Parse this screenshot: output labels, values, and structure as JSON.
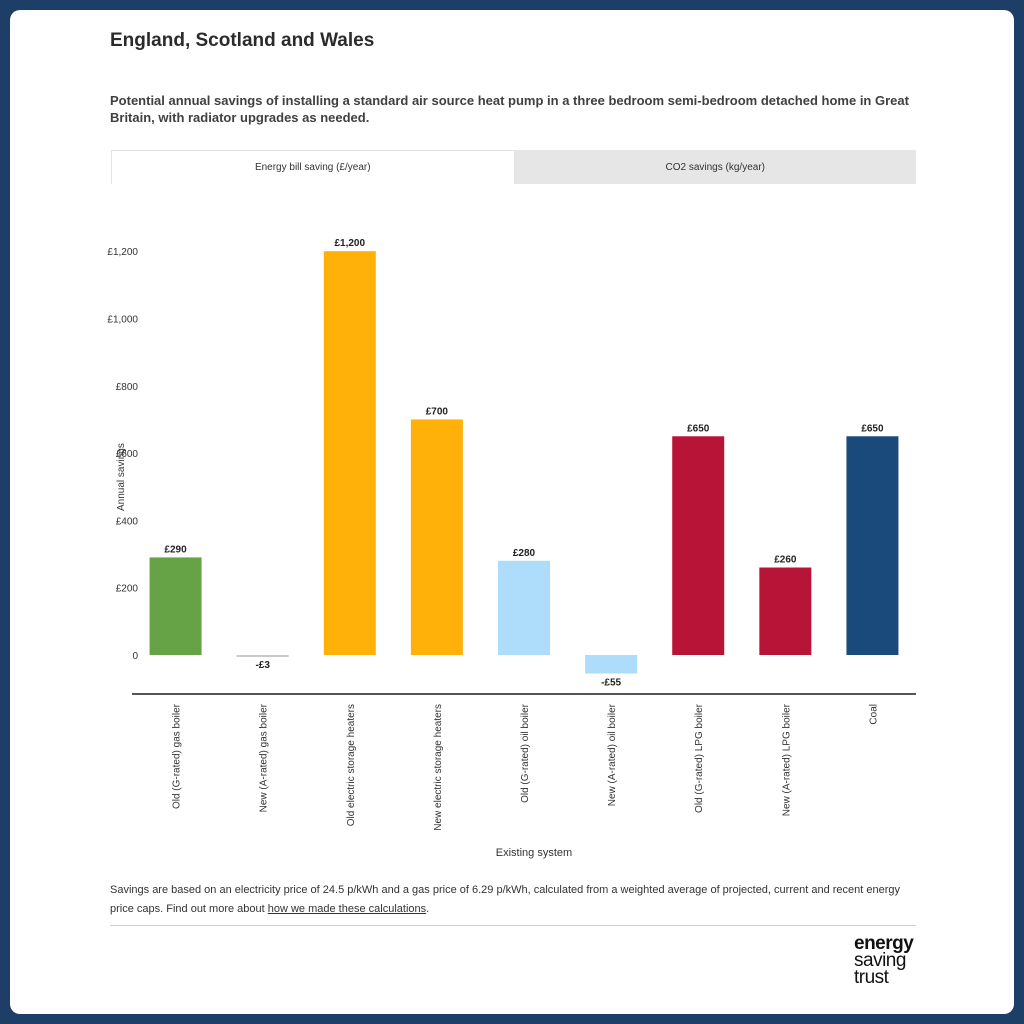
{
  "region_title": "England, Scotland and Wales",
  "subtitle": "Potential annual savings of installing a standard air source heat pump in a three bedroom semi-bedroom detached home in Great Britain, with radiator upgrades as needed.",
  "tabs": [
    {
      "label": "Energy bill saving (£/year)",
      "active": true
    },
    {
      "label": "CO2 savings (kg/year)",
      "active": false
    }
  ],
  "chart_data": {
    "type": "bar",
    "title": "",
    "xlabel": "Existing system",
    "ylabel": "Annual savings",
    "ylim": [
      -100,
      1250
    ],
    "yticks": [
      0,
      200,
      400,
      600,
      800,
      1000,
      1200
    ],
    "ytick_labels": [
      "0",
      "£200",
      "£400",
      "£600",
      "£800",
      "£1,000",
      "£1,200"
    ],
    "grid": false,
    "categories": [
      "Old (G-rated) gas boiler",
      "New (A-rated) gas boiler",
      "Old electric storage heaters",
      "New electric storage heaters",
      "Old (G-rated) oil boiler",
      "New (A-rated) oil boiler",
      "Old (G-rated) LPG boiler",
      "New (A-rated) LPG boiler",
      "Coal"
    ],
    "values": [
      290,
      -3,
      1200,
      700,
      280,
      -55,
      650,
      260,
      650
    ],
    "data_labels": [
      "£290",
      "-£3",
      "£1,200",
      "£700",
      "£280",
      "-£55",
      "£650",
      "£260",
      "£650"
    ],
    "colors": [
      "#65a346",
      "#c9c9c9",
      "#ffb10a",
      "#ffb10a",
      "#aedcfb",
      "#aedcfb",
      "#b81438",
      "#b81438",
      "#1a497c"
    ]
  },
  "footnote": {
    "text": "Savings are based on an electricity price of 24.5 p/kWh and a gas price of 6.29 p/kWh, calculated from a weighted average of projected, current and recent energy price caps. Find out more about ",
    "link": "how we made these calculations",
    "end": "."
  },
  "logo": {
    "line1": "energy",
    "line2": "saving",
    "line3": "trust"
  }
}
